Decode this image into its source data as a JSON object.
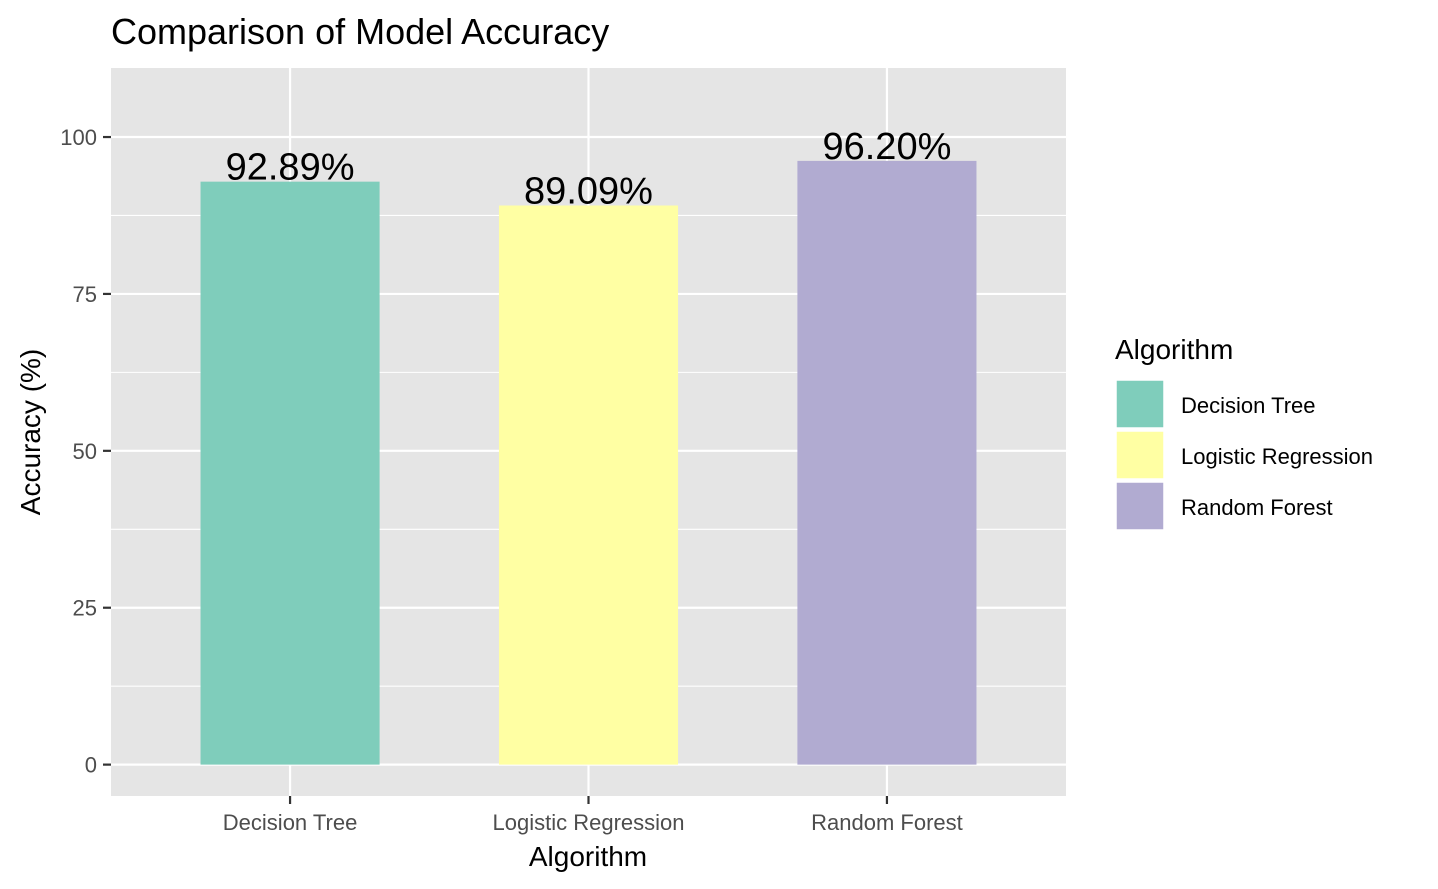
{
  "chart_data": {
    "type": "bar",
    "title": "Comparison of Model Accuracy",
    "xlabel": "Algorithm",
    "ylabel": "Accuracy (%)",
    "categories": [
      "Decision Tree",
      "Logistic Regression",
      "Random Forest"
    ],
    "values": [
      92.89,
      89.09,
      96.2
    ],
    "value_labels": [
      "92.89%",
      "89.09%",
      "96.20%"
    ],
    "colors": [
      "#7fcdbb",
      "#ffffa3",
      "#b1abd1"
    ],
    "ylim": [
      -5,
      111
    ],
    "yticks": [
      0,
      25,
      50,
      75,
      100
    ],
    "ytick_labels": [
      "0",
      "25",
      "50",
      "75",
      "100"
    ],
    "grid": true,
    "legend": {
      "title": "Algorithm",
      "position": "right",
      "items": [
        "Decision Tree",
        "Logistic Regression",
        "Random Forest"
      ]
    },
    "panel_background": "#e5e5e5",
    "grid_color": "#ffffff"
  }
}
